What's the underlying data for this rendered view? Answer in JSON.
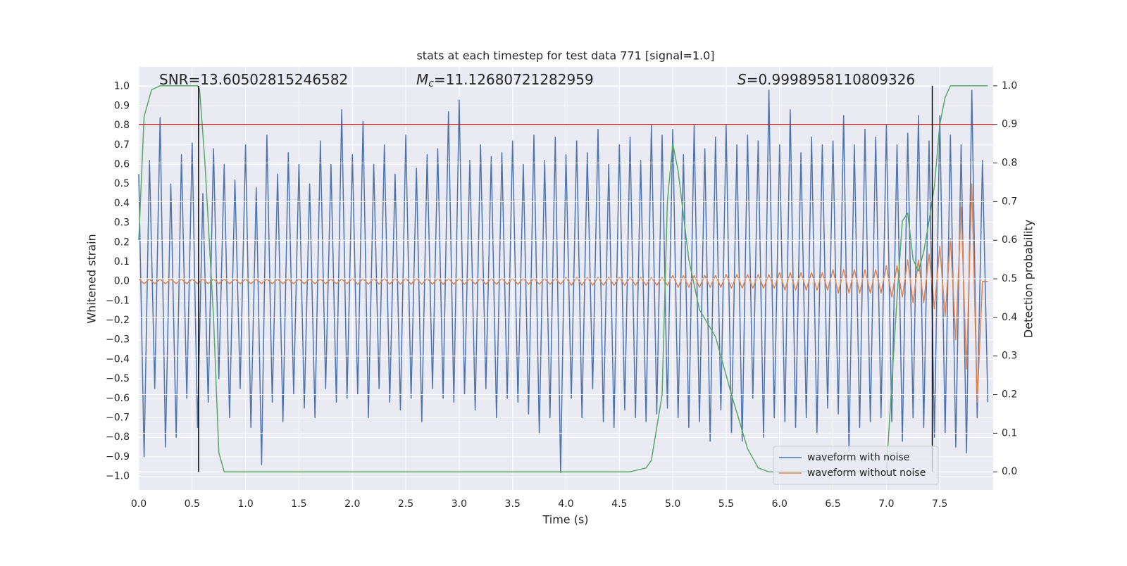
{
  "chart_data": {
    "type": "line",
    "title": "stats at each timestep for test data 771 [signal=1.0]",
    "xlabel": "Time (s)",
    "ylabel": "Whitened strain",
    "y2label": "Detection probability",
    "annotations": [
      {
        "text": "SNR=13.60502815246582"
      },
      {
        "italic": "M",
        "sub": "c",
        "text": "=11.12680721282959"
      },
      {
        "italic": "S",
        "text": "=0.9998958110809326"
      }
    ],
    "xlim": [
      0,
      8
    ],
    "xticks": [
      {
        "value": 0,
        "label": "0.0"
      },
      0.5,
      {
        "value": 1,
        "label": "1.0"
      },
      1.5,
      {
        "value": 2,
        "label": "2.0"
      },
      2.5,
      {
        "value": 3,
        "label": "3.0"
      },
      3.5,
      {
        "value": 4,
        "label": "4.0"
      },
      4.5,
      {
        "value": 5,
        "label": "5.0"
      },
      5.5,
      {
        "value": 6,
        "label": "6.0"
      },
      6.5,
      {
        "value": 7,
        "label": "7.0"
      },
      7.5
    ],
    "ylim": [
      -1.07,
      1.1
    ],
    "yticks": [
      {
        "value": -1,
        "label": "−1.0"
      },
      {
        "value": -0.9,
        "label": "−0.9"
      },
      {
        "value": -0.8,
        "label": "−0.8"
      },
      {
        "value": -0.7,
        "label": "−0.7"
      },
      {
        "value": -0.6,
        "label": "−0.6"
      },
      {
        "value": -0.5,
        "label": "−0.5"
      },
      {
        "value": -0.4,
        "label": "−0.4"
      },
      {
        "value": -0.3,
        "label": "−0.3"
      },
      {
        "value": -0.2,
        "label": "−0.2"
      },
      {
        "value": -0.1,
        "label": "−0.1"
      },
      {
        "value": 0,
        "label": "0.0"
      },
      0.1,
      0.2,
      0.3,
      0.4,
      0.5,
      0.6,
      0.7,
      0.8,
      0.9,
      {
        "value": 1,
        "label": "1.0"
      }
    ],
    "y2lim": [
      -0.047,
      1.049
    ],
    "y2ticks": [
      {
        "value": 0,
        "label": "0.0"
      },
      0.1,
      0.2,
      0.3,
      0.4,
      0.5,
      0.6,
      0.7,
      0.8,
      0.9,
      {
        "value": 1,
        "label": "1.0"
      }
    ],
    "grid": true,
    "legend": "lower right",
    "x": [
      0,
      0.05,
      0.1,
      0.15,
      0.2,
      0.25,
      0.3,
      0.35,
      0.4,
      0.45,
      0.5,
      0.55,
      0.6,
      0.65,
      0.7,
      0.75,
      0.8,
      0.85,
      0.9,
      0.95,
      1,
      1.05,
      1.1,
      1.15,
      1.2,
      1.25,
      1.3,
      1.35,
      1.4,
      1.45,
      1.5,
      1.55,
      1.6,
      1.65,
      1.7,
      1.75,
      1.8,
      1.85,
      1.9,
      1.95,
      2,
      2.05,
      2.1,
      2.15,
      2.2,
      2.25,
      2.3,
      2.35,
      2.4,
      2.45,
      2.5,
      2.55,
      2.6,
      2.65,
      2.7,
      2.75,
      2.8,
      2.85,
      2.9,
      2.95,
      3,
      3.05,
      3.1,
      3.15,
      3.2,
      3.25,
      3.3,
      3.35,
      3.4,
      3.45,
      3.5,
      3.55,
      3.6,
      3.65,
      3.7,
      3.75,
      3.8,
      3.85,
      3.9,
      3.95,
      4,
      4.05,
      4.1,
      4.15,
      4.2,
      4.25,
      4.3,
      4.35,
      4.4,
      4.45,
      4.5,
      4.55,
      4.6,
      4.65,
      4.7,
      4.75,
      4.8,
      4.85,
      4.9,
      4.95,
      5,
      5.05,
      5.1,
      5.15,
      5.2,
      5.25,
      5.3,
      5.35,
      5.4,
      5.45,
      5.5,
      5.55,
      5.6,
      5.65,
      5.7,
      5.75,
      5.8,
      5.85,
      5.9,
      5.95,
      6,
      6.05,
      6.1,
      6.15,
      6.2,
      6.25,
      6.3,
      6.35,
      6.4,
      6.45,
      6.5,
      6.55,
      6.6,
      6.65,
      6.7,
      6.75,
      6.8,
      6.85,
      6.9,
      6.95,
      7,
      7.05,
      7.1,
      7.15,
      7.2,
      7.25,
      7.3,
      7.35,
      7.4,
      7.45,
      7.5,
      7.55,
      7.6,
      7.65,
      7.7,
      7.75,
      7.8,
      7.85,
      7.9,
      7.95
    ],
    "series": [
      {
        "name": "waveform with noise",
        "color": "#4c72b0",
        "values": [
          0.55,
          -0.9,
          0.62,
          -0.55,
          0.84,
          -0.85,
          0.5,
          -0.8,
          0.65,
          -0.6,
          0.71,
          -0.75,
          0.45,
          -0.62,
          0.68,
          -0.5,
          0.6,
          -0.7,
          0.52,
          -0.55,
          0.7,
          -0.75,
          0.48,
          -0.94,
          0.75,
          -0.62,
          0.55,
          -0.72,
          0.66,
          -0.58,
          0.6,
          -0.65,
          0.5,
          -0.7,
          0.72,
          -0.55,
          0.6,
          -0.62,
          0.88,
          -0.6,
          0.65,
          -0.58,
          0.82,
          -0.7,
          0.6,
          -0.55,
          0.7,
          -0.62,
          0.55,
          -0.66,
          0.75,
          -0.6,
          0.58,
          -0.72,
          0.65,
          -0.55,
          0.68,
          -0.6,
          0.87,
          -0.62,
          0.93,
          -0.58,
          0.62,
          -0.66,
          0.7,
          -0.55,
          0.64,
          -0.7,
          0.66,
          -0.6,
          0.72,
          -0.62,
          0.6,
          -0.68,
          0.75,
          -0.78,
          0.62,
          -0.7,
          0.74,
          -0.98,
          0.65,
          -0.6,
          0.72,
          -0.7,
          0.66,
          -0.55,
          0.78,
          -0.72,
          0.6,
          -0.75,
          0.7,
          -0.66,
          0.74,
          -0.7,
          0.62,
          -0.72,
          0.8,
          -0.68,
          0.75,
          -0.65,
          0.78,
          -0.7,
          0.65,
          -0.75,
          0.8,
          -0.72,
          0.68,
          -0.82,
          0.74,
          -0.66,
          0.8,
          -0.78,
          0.7,
          -0.82,
          0.75,
          -0.6,
          0.72,
          -0.8,
          0.98,
          -0.7,
          0.7,
          -0.72,
          0.88,
          -0.75,
          0.66,
          -0.7,
          0.74,
          -0.78,
          0.7,
          -0.65,
          0.72,
          -0.68,
          0.85,
          -0.87,
          0.7,
          -0.75,
          0.78,
          -0.72,
          0.74,
          -0.7,
          0.8,
          -0.72,
          0.7,
          -0.82,
          0.76,
          -0.7,
          0.85,
          -0.75,
          0.72,
          -0.8,
          0.85,
          -0.78,
          0.75,
          -0.85,
          0.7,
          -0.88,
          0.98,
          -0.7,
          0.62,
          -0.62
        ]
      },
      {
        "name": "waveform without noise",
        "color": "#dd8452",
        "values": [
          0.012,
          -0.012,
          0.012,
          -0.012,
          0.012,
          -0.012,
          0.012,
          -0.012,
          0.012,
          -0.012,
          0.012,
          -0.012,
          0.012,
          -0.012,
          0.012,
          -0.012,
          0.012,
          -0.012,
          0.012,
          -0.012,
          0.012,
          -0.012,
          0.012,
          -0.012,
          0.012,
          -0.012,
          0.012,
          -0.012,
          0.012,
          -0.012,
          0.012,
          -0.012,
          0.012,
          -0.012,
          0.012,
          -0.012,
          0.012,
          -0.012,
          0.012,
          -0.012,
          0.015,
          -0.015,
          0.015,
          -0.015,
          0.015,
          -0.015,
          0.015,
          -0.015,
          0.015,
          -0.015,
          0.015,
          -0.015,
          0.015,
          -0.015,
          0.015,
          -0.015,
          0.015,
          -0.015,
          0.015,
          -0.015,
          0.015,
          -0.015,
          0.015,
          -0.015,
          0.015,
          -0.015,
          0.015,
          -0.015,
          0.015,
          -0.015,
          0.015,
          -0.015,
          0.015,
          -0.015,
          0.015,
          -0.015,
          0.015,
          -0.015,
          0.015,
          -0.015,
          0.02,
          -0.02,
          0.02,
          -0.02,
          0.02,
          -0.02,
          0.02,
          -0.02,
          0.02,
          -0.02,
          0.02,
          -0.02,
          0.02,
          -0.02,
          0.02,
          -0.02,
          0.02,
          -0.02,
          0.02,
          -0.02,
          0.03,
          -0.03,
          0.03,
          -0.03,
          0.03,
          -0.03,
          0.03,
          -0.03,
          0.03,
          -0.03,
          0.035,
          -0.035,
          0.035,
          -0.035,
          0.035,
          -0.035,
          0.035,
          -0.035,
          0.035,
          -0.035,
          0.045,
          -0.045,
          0.045,
          -0.045,
          0.045,
          -0.045,
          0.045,
          -0.045,
          0.045,
          -0.045,
          0.06,
          -0.06,
          0.06,
          -0.06,
          0.06,
          -0.06,
          0.06,
          -0.06,
          0.06,
          -0.06,
          0.08,
          -0.08,
          0.08,
          -0.08,
          0.11,
          -0.11,
          0.11,
          -0.11,
          0.14,
          -0.14,
          0.18,
          -0.18,
          0.22,
          -0.3,
          0.38,
          -0.45,
          0.5,
          -0.62,
          0,
          0
        ]
      },
      {
        "color": "#55a868",
        "axis": "y2",
        "x": [
          0,
          0.05,
          0.12,
          0.2,
          0.55,
          0.57,
          0.62,
          0.7,
          0.75,
          0.8,
          4.6,
          4.75,
          4.8,
          4.9,
          4.95,
          5,
          5.05,
          5.15,
          5.25,
          5.4,
          5.55,
          5.7,
          5.8,
          5.9,
          7,
          7.1,
          7.15,
          7.2,
          7.25,
          7.3,
          7.35,
          7.4,
          7.45,
          7.5,
          7.55,
          7.6,
          7.95
        ],
        "values": [
          0.6,
          0.92,
          0.99,
          1,
          1,
          0.99,
          0.8,
          0.4,
          0.05,
          0,
          0,
          0.01,
          0.03,
          0.2,
          0.7,
          0.85,
          0.78,
          0.55,
          0.42,
          0.35,
          0.2,
          0.06,
          0.01,
          0,
          0,
          0.45,
          0.65,
          0.67,
          0.55,
          0.52,
          0.57,
          0.65,
          0.74,
          0.9,
          0.97,
          1,
          1
        ]
      }
    ],
    "threshold": {
      "value": 0.9,
      "axis": "y2",
      "color": "#c03030"
    },
    "vlines": {
      "x": [
        0.56,
        7.43
      ],
      "ymin": 0,
      "ymax": 1,
      "axis": "y2",
      "color": "#000000"
    }
  }
}
